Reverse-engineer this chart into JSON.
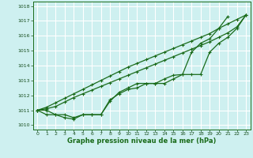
{
  "title": "Graphe pression niveau de la mer (hPa)",
  "background_color": "#cef0f0",
  "grid_color": "#ffffff",
  "line_color": "#1a6b1a",
  "x_ticks": [
    0,
    1,
    2,
    3,
    4,
    5,
    6,
    7,
    8,
    9,
    10,
    11,
    12,
    13,
    14,
    15,
    16,
    17,
    18,
    19,
    20,
    21,
    22,
    23
  ],
  "y_ticks": [
    1010,
    1011,
    1012,
    1013,
    1014,
    1015,
    1016,
    1017,
    1018
  ],
  "ylim": [
    1009.7,
    1018.3
  ],
  "xlim": [
    -0.5,
    23.5
  ],
  "line1_x": [
    0,
    1,
    2,
    3,
    4,
    5,
    6,
    7,
    8,
    9,
    10,
    11,
    12,
    13,
    14,
    15,
    16,
    17,
    18,
    19,
    20,
    21
  ],
  "line1_y": [
    1011.0,
    1010.7,
    1010.7,
    1010.5,
    1010.4,
    1010.7,
    1010.7,
    1010.7,
    1011.6,
    1012.2,
    1012.5,
    1012.8,
    1012.8,
    1012.8,
    1013.1,
    1013.35,
    1013.4,
    1014.9,
    1015.5,
    1015.8,
    1016.5,
    1017.3
  ],
  "line2_x": [
    0,
    1,
    2,
    3,
    4,
    5,
    6,
    7,
    8,
    9,
    10,
    11,
    12,
    13,
    14,
    15,
    16,
    17,
    18,
    19,
    20,
    21,
    22,
    23
  ],
  "line2_y": [
    1011.0,
    1011.0,
    1010.7,
    1010.7,
    1010.5,
    1010.7,
    1010.7,
    1010.7,
    1011.7,
    1012.1,
    1012.4,
    1012.5,
    1012.8,
    1012.8,
    1012.8,
    1013.1,
    1013.4,
    1013.4,
    1013.4,
    1014.9,
    1015.5,
    1015.9,
    1016.5,
    1017.4
  ],
  "line3_x": [
    0,
    1,
    2,
    3,
    4,
    5,
    6,
    7,
    8,
    9,
    10,
    11,
    12,
    13,
    14,
    15,
    16,
    17,
    18,
    19,
    20,
    21,
    22,
    23
  ],
  "line3_y": [
    1011.0,
    1011.1,
    1011.25,
    1011.55,
    1011.85,
    1012.1,
    1012.35,
    1012.6,
    1012.85,
    1013.1,
    1013.35,
    1013.6,
    1013.85,
    1014.1,
    1014.35,
    1014.6,
    1014.85,
    1015.1,
    1015.35,
    1015.6,
    1015.9,
    1016.2,
    1016.6,
    1017.4
  ],
  "line4_x": [
    0,
    1,
    2,
    3,
    4,
    5,
    6,
    7,
    8,
    9,
    10,
    11,
    12,
    13,
    14,
    15,
    16,
    17,
    18,
    19,
    20,
    21,
    22,
    23
  ],
  "line4_y": [
    1011.0,
    1011.2,
    1011.5,
    1011.8,
    1012.1,
    1012.4,
    1012.7,
    1013.0,
    1013.3,
    1013.6,
    1013.9,
    1014.15,
    1014.4,
    1014.65,
    1014.9,
    1015.15,
    1015.4,
    1015.65,
    1015.9,
    1016.15,
    1016.5,
    1016.8,
    1017.1,
    1017.4
  ]
}
